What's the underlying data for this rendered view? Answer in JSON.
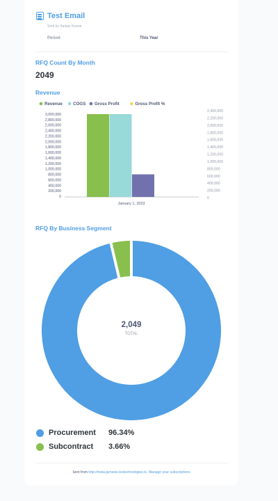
{
  "header": {
    "title": "Test Email",
    "sent_by": "Sent by Sanjay Kumar",
    "filter_label": "Period",
    "filter_value": "This Year"
  },
  "rfq_count": {
    "title": "RFQ Count By Month",
    "value": "2049"
  },
  "revenue": {
    "title": "Revenue",
    "chart_data": {
      "type": "bar",
      "categories": [
        "January 1, 2023"
      ],
      "series": [
        {
          "name": "Revenue",
          "color": "#88bf4d",
          "values": [
            3000000
          ],
          "axis": "left"
        },
        {
          "name": "COGS",
          "color": "#98d9d9",
          "values": [
            3000000
          ],
          "axis": "left"
        },
        {
          "name": "Gross Profit",
          "color": "#7172ad",
          "values": [
            800000
          ],
          "axis": "left"
        },
        {
          "name": "Gross Profit %",
          "color": "#f9d45c",
          "values": [
            0
          ],
          "axis": "right"
        }
      ],
      "ylim": [
        0,
        3000000
      ],
      "y2lim": [
        0,
        2400000
      ],
      "y_ticks": [
        "3,000,000",
        "2,800,000",
        "2,600,000",
        "2,400,000",
        "2,200,000",
        "2,000,000",
        "1,800,000",
        "1,600,000",
        "1,400,000",
        "1,200,000",
        "1,000,000",
        "800,000",
        "600,000",
        "400,000",
        "200,000",
        "0"
      ],
      "y2_ticks": [
        "2,400,000",
        "2,200,000",
        "2,000,000",
        "1,800,000",
        "1,600,000",
        "1,400,000",
        "1,200,000",
        "1,000,000",
        "800,000",
        "600,000",
        "400,000",
        "200,000",
        "0"
      ],
      "legend_position": "top-left"
    }
  },
  "segment": {
    "title": "RFQ By Business Segment",
    "chart_data": {
      "type": "pie",
      "donut": true,
      "slices": [
        {
          "name": "Procurement",
          "value": 96.34,
          "pct_label": "96.34%",
          "color": "#509ee3"
        },
        {
          "name": "Subcontract",
          "value": 3.66,
          "pct_label": "3.66%",
          "color": "#88bf4d"
        }
      ],
      "center_value": "2,049",
      "center_label": "TOTAL"
    }
  },
  "footer": {
    "prefix": "Sent from",
    "link_text": "http://meta.genesis.testechnologies.tc.",
    "manage_text": "Manage your subscriptions"
  }
}
